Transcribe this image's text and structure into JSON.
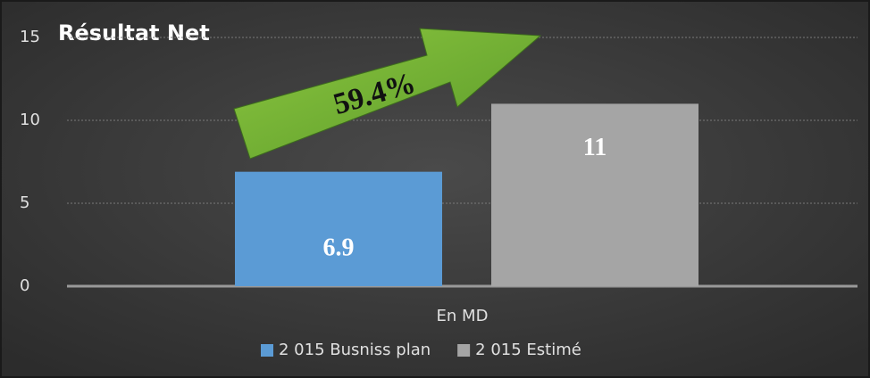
{
  "chart_data": {
    "type": "bar",
    "title": "Résultat Net",
    "categories": [
      "En MD"
    ],
    "series": [
      {
        "name": "2 015 Busniss plan",
        "color": "#5b9bd5",
        "values": [
          6.9
        ]
      },
      {
        "name": "2 015 Estimé",
        "color": "#a5a5a5",
        "values": [
          11
        ]
      }
    ],
    "ylim": [
      0,
      15
    ],
    "yticks": [
      0,
      5,
      10,
      15
    ],
    "grid": true,
    "legend": "bottom",
    "annotation": "59.4%"
  }
}
